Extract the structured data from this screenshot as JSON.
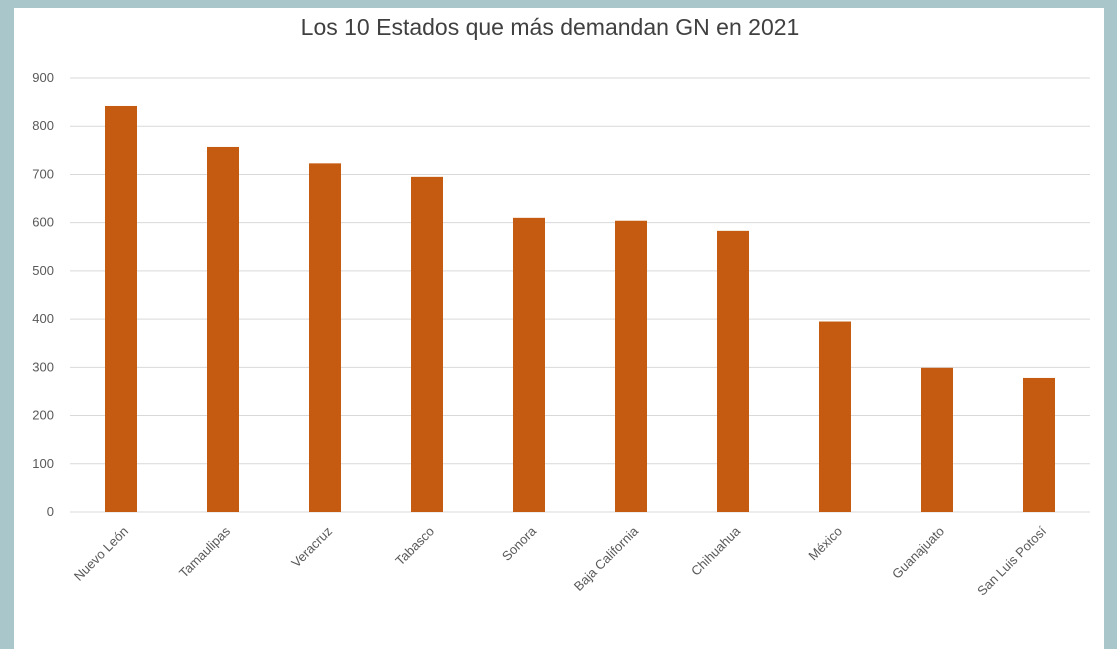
{
  "chart_data": {
    "type": "bar",
    "title": "Los 10 Estados que más demandan GN en 2021",
    "xlabel": "",
    "ylabel": "",
    "categories": [
      "Nuevo León",
      "Tamaulipas",
      "Veracruz",
      "Tabasco",
      "Sonora",
      "Baja California",
      "Chihuahua",
      "México",
      "Guanajuato",
      "San Luis Potosí"
    ],
    "values": [
      842,
      757,
      723,
      695,
      610,
      604,
      583,
      395,
      299,
      278
    ],
    "ylim": [
      0,
      900
    ],
    "yticks": [
      "0",
      "100",
      "200",
      "300",
      "400",
      "500",
      "600",
      "700",
      "800",
      "900"
    ],
    "grid": true,
    "legend": "none",
    "bar_color": "#c55a11",
    "gridline_color": "#d9d9d9"
  }
}
